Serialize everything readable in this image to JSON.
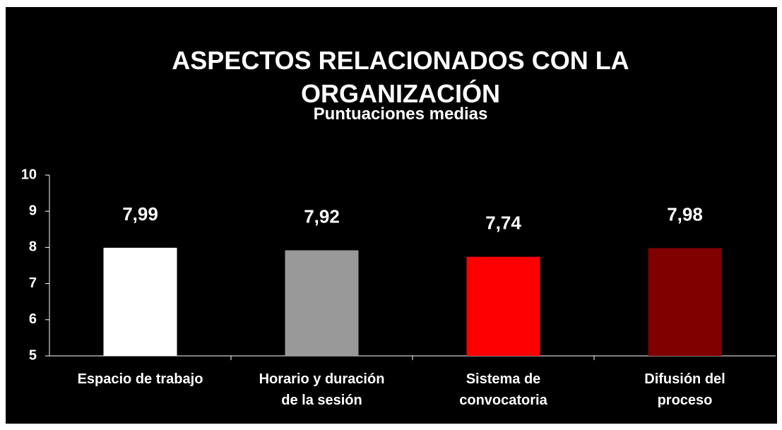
{
  "chart_data": {
    "type": "bar",
    "title": "ASPECTOS RELACIONADOS CON LA ORGANIZACIÓN",
    "subtitle": "Puntuaciones medias",
    "categories": [
      "Espacio de trabajo",
      "Horario y duración\nde la sesión",
      "Sistema de\nconvocatoria",
      "Difusión del\nproceso"
    ],
    "values": [
      7.99,
      7.92,
      7.74,
      7.98
    ],
    "value_labels": [
      "7,99",
      "7,92",
      "7,74",
      "7,98"
    ],
    "colors": [
      "#ffffff",
      "#999999",
      "#ff0000",
      "#800000"
    ],
    "ylim": [
      5,
      10
    ],
    "yticks": [
      5,
      6,
      7,
      8,
      9,
      10
    ],
    "grid": false
  }
}
